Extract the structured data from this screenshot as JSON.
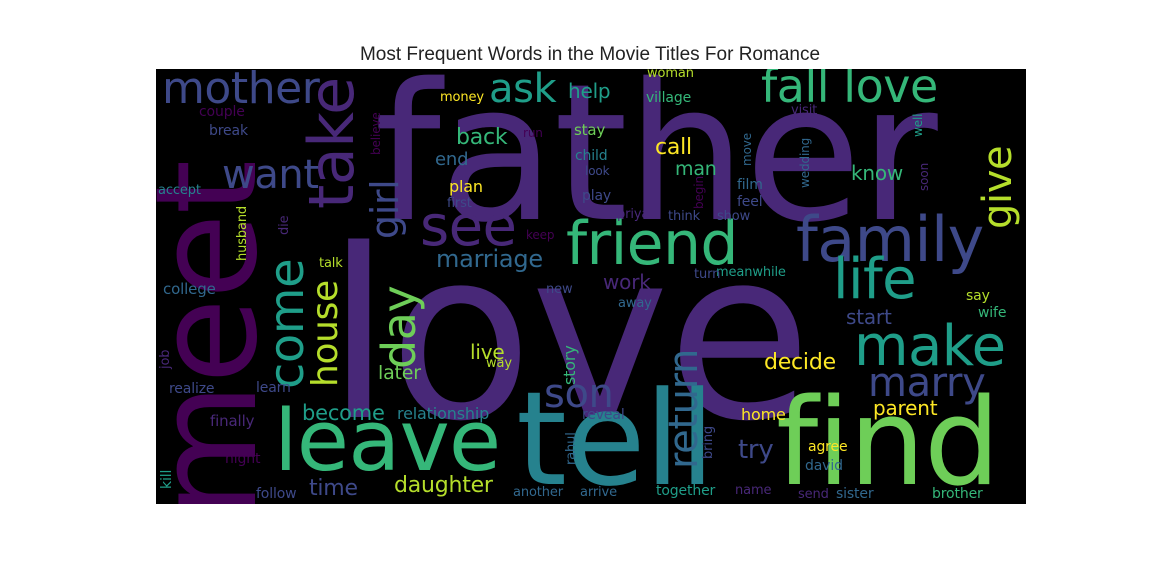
{
  "title": "Most Frequent Words in the Movie Titles For Romance",
  "palette": {
    "background": "#000000",
    "dark_purple": "#440154",
    "purple": "#482878",
    "indigo": "#3e4989",
    "blue": "#31688e",
    "teal": "#26828e",
    "green_teal": "#1f9e89",
    "green": "#35b779",
    "light_green": "#6ece58",
    "lime": "#b5de2b",
    "yellow": "#fde725"
  },
  "words": {
    "love": "love",
    "father": "father",
    "meet": "meet",
    "tell": "tell",
    "find": "find",
    "leave": "leave",
    "friend": "friend",
    "family": "family",
    "life": "life",
    "make": "make",
    "mother": "mother",
    "take": "take",
    "see": "see",
    "fall_love": "fall love",
    "ask": "ask",
    "come": "come",
    "day": "day",
    "want": "want",
    "girl": "girl",
    "house": "house",
    "marry": "marry",
    "son": "son",
    "return": "return",
    "give": "give",
    "marriage": "marriage",
    "daughter": "daughter",
    "time": "time",
    "become": "become",
    "try": "try",
    "decide": "decide",
    "parent": "parent",
    "call": "call",
    "back": "back",
    "help": "help",
    "know": "know",
    "start": "start",
    "live": "live",
    "work": "work",
    "relationship": "relationship",
    "later": "later",
    "end": "end",
    "man": "man",
    "plan": "plan",
    "story": "story",
    "home": "home",
    "village": "village",
    "woman": "woman",
    "money": "money",
    "stay": "stay",
    "child": "child",
    "film": "film",
    "play": "play",
    "feel": "feel",
    "say": "say",
    "wife": "wife",
    "brother": "brother",
    "sister": "sister",
    "together": "together",
    "david": "david",
    "agree": "agree",
    "reveal": "reveal",
    "rahul": "rahul",
    "bring": "bring",
    "name": "name",
    "send": "send",
    "another": "another",
    "arrive": "arrive",
    "follow": "follow",
    "night": "night",
    "kill": "kill",
    "finally": "finally",
    "learn": "learn",
    "realize": "realize",
    "job": "job",
    "college": "college",
    "talk": "talk",
    "die": "die",
    "husband": "husband",
    "accept": "accept",
    "break": "break",
    "couple": "couple",
    "believe": "believe",
    "run": "run",
    "look": "look",
    "first": "first",
    "keep": "keep",
    "priya": "priya",
    "think": "think",
    "show": "show",
    "begin": "begin",
    "move": "move",
    "wedding": "wedding",
    "visit": "visit",
    "well": "well",
    "soon": "soon",
    "meanwhile": "meanwhile",
    "turn": "turn",
    "away": "away",
    "new": "new",
    "way": "way"
  }
}
